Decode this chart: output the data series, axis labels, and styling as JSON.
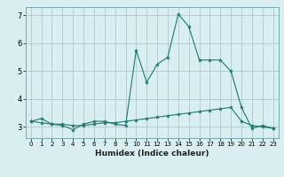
{
  "xlabel": "Humidex (Indice chaleur)",
  "ylabel": "",
  "bg_color": "#d8eef0",
  "grid_color": "#aec8cc",
  "line_color": "#1a7a6e",
  "xlim": [
    -0.5,
    23.5
  ],
  "ylim": [
    2.6,
    7.3
  ],
  "yticks": [
    3,
    4,
    5,
    6,
    7
  ],
  "xticks": [
    0,
    1,
    2,
    3,
    4,
    5,
    6,
    7,
    8,
    9,
    10,
    11,
    12,
    13,
    14,
    15,
    16,
    17,
    18,
    19,
    20,
    21,
    22,
    23
  ],
  "line1_x": [
    0,
    1,
    2,
    3,
    4,
    5,
    6,
    7,
    8,
    9,
    10,
    11,
    12,
    13,
    14,
    15,
    16,
    17,
    18,
    19,
    20,
    21,
    22,
    23
  ],
  "line1_y": [
    3.2,
    3.3,
    3.1,
    3.05,
    2.9,
    3.1,
    3.2,
    3.2,
    3.1,
    3.05,
    5.75,
    4.6,
    5.25,
    5.5,
    7.05,
    6.6,
    5.4,
    5.4,
    5.4,
    5.0,
    3.7,
    2.95,
    3.05,
    2.95
  ],
  "line2_x": [
    0,
    1,
    2,
    3,
    4,
    5,
    6,
    7,
    8,
    9,
    10,
    11,
    12,
    13,
    14,
    15,
    16,
    17,
    18,
    19,
    20,
    21,
    22,
    23
  ],
  "line2_y": [
    3.2,
    3.15,
    3.1,
    3.1,
    3.05,
    3.05,
    3.1,
    3.15,
    3.15,
    3.2,
    3.25,
    3.3,
    3.35,
    3.4,
    3.45,
    3.5,
    3.55,
    3.6,
    3.65,
    3.7,
    3.2,
    3.05,
    3.0,
    2.95
  ]
}
